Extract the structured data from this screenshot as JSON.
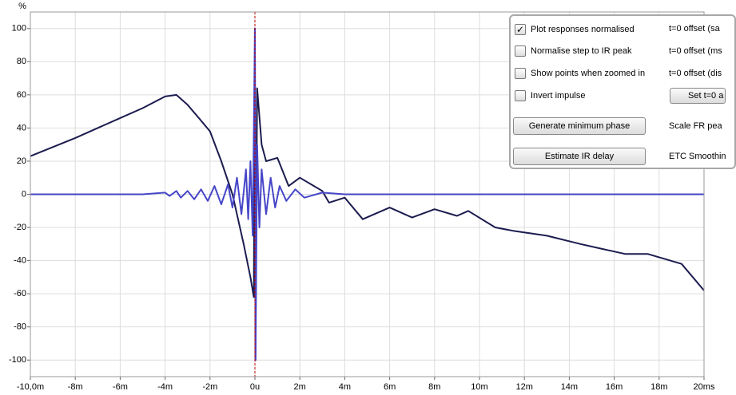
{
  "chart_data": {
    "type": "line",
    "y_label": "%",
    "xlim": [
      -10,
      20
    ],
    "ylim": [
      -110,
      110
    ],
    "xticks": [
      {
        "value": -10,
        "label": "-10,0m"
      },
      {
        "value": -8,
        "label": "-8m"
      },
      {
        "value": -6,
        "label": "-6m"
      },
      {
        "value": -4,
        "label": "-4m"
      },
      {
        "value": -2,
        "label": "-2m"
      },
      {
        "value": 0,
        "label": "0u"
      },
      {
        "value": 2,
        "label": "2m"
      },
      {
        "value": 4,
        "label": "4m"
      },
      {
        "value": 6,
        "label": "6m"
      },
      {
        "value": 8,
        "label": "8m"
      },
      {
        "value": 10,
        "label": "10m"
      },
      {
        "value": 12,
        "label": "12m"
      },
      {
        "value": 14,
        "label": "14m"
      },
      {
        "value": 16,
        "label": "16m"
      },
      {
        "value": 18,
        "label": "18m"
      },
      {
        "value": 20,
        "label": "20ms"
      }
    ],
    "yticks": [
      -100,
      -80,
      -60,
      -40,
      -20,
      0,
      20,
      40,
      60,
      80,
      100
    ],
    "grid": true,
    "reference_line": 0,
    "reference_color": "#c00000",
    "series": [
      {
        "color": "#1c1c50",
        "x": [
          -10,
          -8,
          -6,
          -5,
          -4,
          -3.5,
          -3,
          -2.5,
          -2,
          -1.5,
          -1,
          -0.5,
          -0.2,
          -0.05,
          0,
          0.02,
          0.1,
          0.3,
          0.5,
          1,
          1.5,
          2,
          2.5,
          3,
          3.3,
          4,
          4.8,
          6,
          7,
          8,
          9,
          9.5,
          10.7,
          11.5,
          13,
          14.5,
          15.5,
          16.5,
          17.5,
          19,
          20
        ],
        "values": [
          23,
          34,
          46,
          52,
          59,
          60,
          54,
          46,
          38,
          20,
          0,
          -30,
          -50,
          -62,
          100,
          -100,
          64,
          30,
          20,
          22,
          5,
          10,
          6,
          2,
          -5,
          -2,
          -15,
          -8,
          -14,
          -9,
          -13,
          -10,
          -20,
          -22,
          -25,
          -30,
          -33,
          -36,
          -36,
          -42,
          -58
        ]
      },
      {
        "color": "#4646c8",
        "x": [
          -10,
          -5,
          -4,
          -3.8,
          -3.5,
          -3.3,
          -3,
          -2.7,
          -2.4,
          -2.1,
          -1.8,
          -1.5,
          -1.2,
          -1,
          -0.8,
          -0.6,
          -0.4,
          -0.3,
          -0.2,
          -0.1,
          0,
          0.03,
          0.1,
          0.2,
          0.3,
          0.5,
          0.7,
          0.9,
          1.1,
          1.4,
          1.8,
          2.2,
          3,
          4,
          20
        ],
        "values": [
          0,
          0,
          1,
          -1,
          2,
          -2,
          2,
          -3,
          3,
          -4,
          5,
          -6,
          6,
          -8,
          10,
          -12,
          15,
          -15,
          20,
          -25,
          100,
          -100,
          30,
          -20,
          15,
          -12,
          10,
          -8,
          5,
          -4,
          3,
          -2,
          1,
          0,
          0
        ]
      }
    ]
  },
  "panel": {
    "checkboxes": [
      {
        "label": "Plot responses normalised",
        "checked": true
      },
      {
        "label": "Normalise step to IR peak",
        "checked": false
      },
      {
        "label": "Show points when zoomed in",
        "checked": false
      },
      {
        "label": "Invert impulse",
        "checked": false
      }
    ],
    "buttons": [
      "Generate minimum phase",
      "Estimate IR delay"
    ],
    "right_column": [
      "t=0 offset (sa",
      "t=0 offset (ms",
      "t=0 offset (dis",
      "Set t=0 a",
      "Scale FR pea",
      "ETC Smoothin"
    ]
  }
}
